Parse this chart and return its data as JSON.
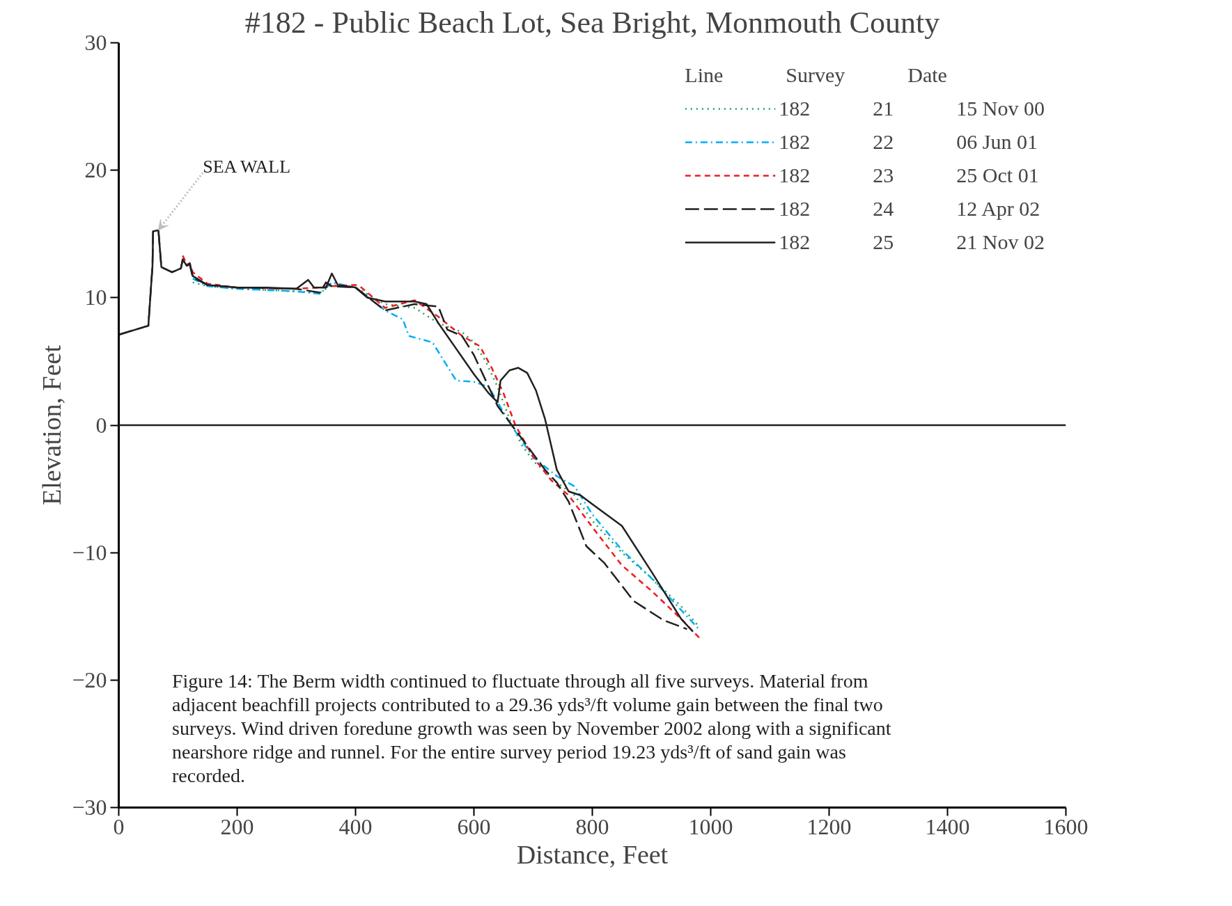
{
  "chart_data": {
    "type": "line",
    "title": "#182 - Public Beach Lot, Sea Bright, Monmouth County",
    "xlabel": "Distance, Feet",
    "ylabel": "Elevation, Feet",
    "xlim": [
      0,
      1600
    ],
    "ylim": [
      -30,
      30
    ],
    "xticks": [
      0,
      200,
      400,
      600,
      800,
      1000,
      1200,
      1400,
      1600
    ],
    "yticks": [
      -30,
      -20,
      -10,
      0,
      10,
      20,
      30
    ],
    "grid": false,
    "legend": "top right",
    "legend_title": "Line Survey Date",
    "ref_lines": [
      {
        "axis": "y",
        "value": 0,
        "color": "#231f20",
        "line_style": "solid"
      }
    ],
    "annotations": [
      {
        "text": "SEA WALL",
        "x": 67,
        "y": 15.3
      },
      "Figure 14: The Berm width continued to fluctuate through all five surveys. Material from adjacent beachfill projects contributed to a 29.36 yds³/ft volume gain between the final two surveys. Wind driven foredune growth was seen by November 2002 along with a significant nearshore ridge and runnel. For the entire survey period 19.23 yds³/ft of sand gain was recorded."
    ],
    "series": [
      {
        "name": "182 21 15 Nov 00",
        "color": "#1aa355",
        "line_style": "dotted",
        "x": [
          125,
          150,
          200,
          300,
          340,
          360,
          400,
          450,
          500,
          540,
          580,
          600,
          620,
          640,
          660,
          680,
          700,
          740,
          770,
          800,
          850,
          900,
          950,
          980
        ],
        "values": [
          11.2,
          10.9,
          10.7,
          10.5,
          10.4,
          11.0,
          10.8,
          9.5,
          9.2,
          8.0,
          7.3,
          6.5,
          5.0,
          3.0,
          0.5,
          -1.5,
          -2.8,
          -4.5,
          -5.5,
          -7.5,
          -10.0,
          -12.0,
          -14.2,
          -15.8
        ]
      },
      {
        "name": "182 22 06 Jun 01",
        "color": "#00aeef",
        "line_style": "dashdot",
        "x": [
          125,
          150,
          200,
          300,
          340,
          360,
          400,
          450,
          480,
          490,
          530,
          570,
          600,
          625,
          650,
          670,
          700,
          740,
          770,
          800,
          850,
          900,
          950,
          980
        ],
        "values": [
          11.5,
          10.9,
          10.7,
          10.5,
          10.3,
          11.2,
          10.8,
          9.0,
          8.3,
          7.0,
          6.5,
          3.5,
          3.4,
          3.0,
          1.0,
          -0.5,
          -2.5,
          -4.0,
          -4.8,
          -7.0,
          -9.8,
          -12.0,
          -14.5,
          -16.0
        ]
      },
      {
        "name": "182 23 25 Oct 01",
        "color": "#ed1c24",
        "line_style": "dashed",
        "x": [
          108,
          115,
          120,
          125,
          150,
          200,
          300,
          340,
          360,
          400,
          410,
          450,
          500,
          540,
          580,
          610,
          630,
          650,
          670,
          700,
          730,
          760,
          800,
          850,
          900,
          950,
          985
        ],
        "values": [
          13.3,
          12.6,
          12.7,
          12.0,
          11.1,
          10.8,
          10.7,
          10.8,
          10.9,
          11.0,
          10.8,
          9.2,
          9.8,
          8.5,
          7.0,
          6.2,
          4.5,
          2.5,
          0.0,
          -2.5,
          -4.3,
          -5.5,
          -8.0,
          -11.0,
          -13.0,
          -15.2,
          -16.9
        ]
      },
      {
        "name": "182 24 12 Apr 02",
        "color": "#231f20",
        "line_style": "longdash",
        "x": [
          0,
          50,
          57,
          58,
          67,
          72,
          90,
          105,
          108,
          115,
          120,
          125,
          150,
          200,
          300,
          340,
          350,
          360,
          400,
          450,
          500,
          540,
          555,
          580,
          600,
          620,
          640,
          680,
          720,
          740,
          760,
          790,
          820,
          870,
          920,
          960
        ],
        "values": [
          7.1,
          7.8,
          12.5,
          15.2,
          15.3,
          12.4,
          12.0,
          12.3,
          13.0,
          12.5,
          12.6,
          11.6,
          11.0,
          10.8,
          10.7,
          10.4,
          11.2,
          10.9,
          10.8,
          9.0,
          9.5,
          9.3,
          7.5,
          7.0,
          5.5,
          3.5,
          1.5,
          -1.0,
          -3.5,
          -4.5,
          -6.0,
          -9.5,
          -10.8,
          -13.8,
          -15.3,
          -16.0
        ]
      },
      {
        "name": "182 25 21 Nov 02",
        "color": "#231f20",
        "line_style": "solid",
        "x": [
          0,
          50,
          57,
          58,
          67,
          72,
          90,
          105,
          108,
          115,
          120,
          125,
          150,
          200,
          250,
          300,
          320,
          330,
          350,
          360,
          370,
          400,
          420,
          450,
          500,
          520,
          540,
          570,
          600,
          625,
          640,
          645,
          660,
          675,
          690,
          705,
          720,
          740,
          760,
          780,
          800,
          850,
          900,
          950,
          970
        ],
        "values": [
          7.1,
          7.8,
          12.5,
          15.2,
          15.3,
          12.4,
          12.0,
          12.3,
          13.0,
          12.5,
          12.7,
          11.7,
          11.0,
          10.8,
          10.8,
          10.7,
          11.4,
          10.8,
          10.8,
          11.9,
          11.0,
          10.8,
          10.0,
          9.7,
          9.7,
          9.5,
          8.0,
          6.0,
          4.0,
          2.5,
          1.8,
          3.5,
          4.3,
          4.5,
          4.1,
          2.7,
          0.5,
          -3.5,
          -5.2,
          -5.5,
          -6.2,
          -7.9,
          -11.5,
          -15.2,
          -16.2
        ]
      }
    ]
  }
}
